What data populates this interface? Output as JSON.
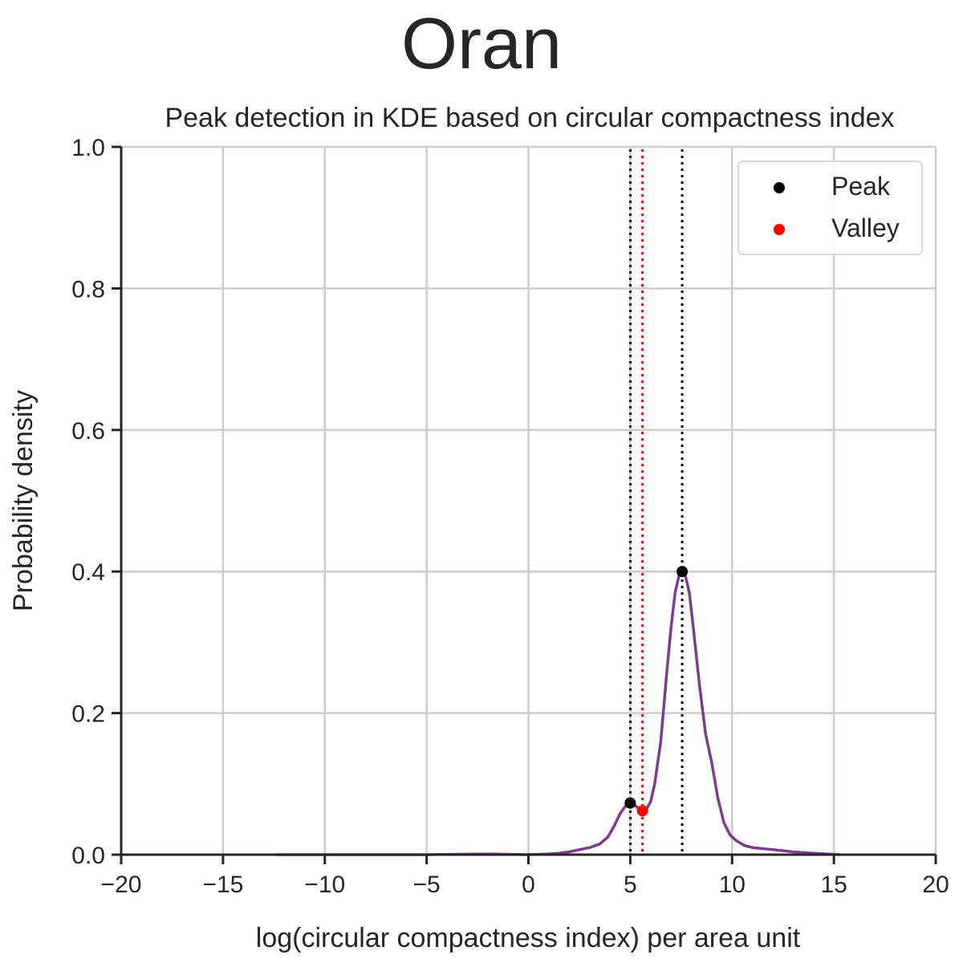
{
  "suptitle": "Oran",
  "chart_data": {
    "type": "line",
    "title": "Peak detection in KDE based on circular compactness index",
    "xlabel": "log(circular compactness index) per area unit",
    "ylabel": "Probability density",
    "xlim": [
      -20,
      20
    ],
    "ylim": [
      0,
      1.0
    ],
    "x_ticks": [
      -20,
      -15,
      -10,
      -5,
      0,
      5,
      10,
      15,
      20
    ],
    "x_tick_labels": [
      "−20",
      "−15",
      "−10",
      "−5",
      "0",
      "5",
      "10",
      "15",
      "20"
    ],
    "y_ticks": [
      0.0,
      0.2,
      0.4,
      0.6,
      0.8,
      1.0
    ],
    "y_tick_labels": [
      "0.0",
      "0.2",
      "0.4",
      "0.6",
      "0.8",
      "1.0"
    ],
    "grid": true,
    "legend_position": "top-right",
    "kde_curve": {
      "color": "#7d3c8f",
      "x": [
        -12.4,
        -10,
        -8,
        -5,
        -2,
        0,
        1,
        1.5,
        2,
        2.5,
        3,
        3.5,
        3.9,
        4.2,
        4.5,
        4.8,
        5.0,
        5.2,
        5.4,
        5.6,
        5.8,
        6.0,
        6.2,
        6.5,
        6.8,
        7.0,
        7.2,
        7.4,
        7.55,
        7.7,
        7.9,
        8.1,
        8.4,
        8.7,
        9.0,
        9.3,
        9.6,
        9.9,
        10.2,
        10.6,
        11.0,
        12.0,
        13.0,
        14.0,
        15.3
      ],
      "y": [
        0.0,
        0.0,
        0.0,
        0.0,
        0.001,
        0.0,
        0.001,
        0.002,
        0.004,
        0.007,
        0.01,
        0.015,
        0.025,
        0.04,
        0.058,
        0.07,
        0.073,
        0.071,
        0.065,
        0.062,
        0.065,
        0.075,
        0.1,
        0.16,
        0.26,
        0.32,
        0.37,
        0.395,
        0.4,
        0.395,
        0.37,
        0.32,
        0.24,
        0.17,
        0.13,
        0.08,
        0.045,
        0.028,
        0.02,
        0.013,
        0.01,
        0.007,
        0.004,
        0.002,
        0.0
      ]
    },
    "peaks": {
      "name": "Peak",
      "color": "#000000",
      "x": [
        5.0,
        7.55
      ],
      "y": [
        0.073,
        0.4
      ]
    },
    "valleys": {
      "name": "Valley",
      "color": "#ff0000",
      "x": [
        5.6
      ],
      "y": [
        0.062
      ]
    },
    "vlines": [
      {
        "x": 5.0,
        "color": "#000000",
        "style": "dotted"
      },
      {
        "x": 7.55,
        "color": "#000000",
        "style": "dotted"
      },
      {
        "x": 5.6,
        "color": "#ff0000",
        "style": "dotted"
      }
    ]
  }
}
